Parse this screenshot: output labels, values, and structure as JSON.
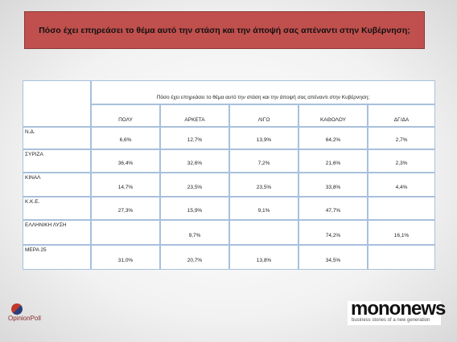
{
  "header": {
    "title": "Πόσο έχει επηρεάσει το θέμα αυτό την στάση και την άποψή σας απέναντι στην Κυβέρνηση;"
  },
  "table": {
    "caption": "Πόσο έχει επηρεάσει το θέμα αυτό την στάση και την άποψή σας απέναντι στην Κυβέρνηση;",
    "columns": [
      "ΠΟΛΥ",
      "ΑΡΚΕΤΑ",
      "ΛΙΓΟ",
      "ΚΑΘΟΛΟΥ",
      "ΔΓ/ΔΑ"
    ],
    "rows": [
      [
        "Ν.Δ.",
        "6,6%",
        "12,7%",
        "13,9%",
        "64,2%",
        "2,7%"
      ],
      [
        "ΣΥΡΙΖΑ",
        "36,4%",
        "32,6%",
        "7,2%",
        "21,6%",
        "2,3%"
      ],
      [
        "ΚΙΝΑΛ",
        "14,7%",
        "23,5%",
        "23,5%",
        "33,8%",
        "4,4%"
      ],
      [
        "Κ.Κ.Ε.",
        "27,3%",
        "15,9%",
        "9,1%",
        "47,7%",
        null
      ],
      [
        "ΕΛΛΗΝΙΚΗ ΛΥΣΗ",
        null,
        "9,7%",
        null,
        "74,2%",
        "16,1%"
      ],
      [
        "ΜΕΡΑ 25",
        "31,0%",
        "20,7%",
        "13,8%",
        "34,5%",
        null
      ]
    ]
  },
  "footer": {
    "left_logo": "OpinionPoll",
    "right_logo": "mononews",
    "right_tagline": "business stories of a new generation"
  }
}
